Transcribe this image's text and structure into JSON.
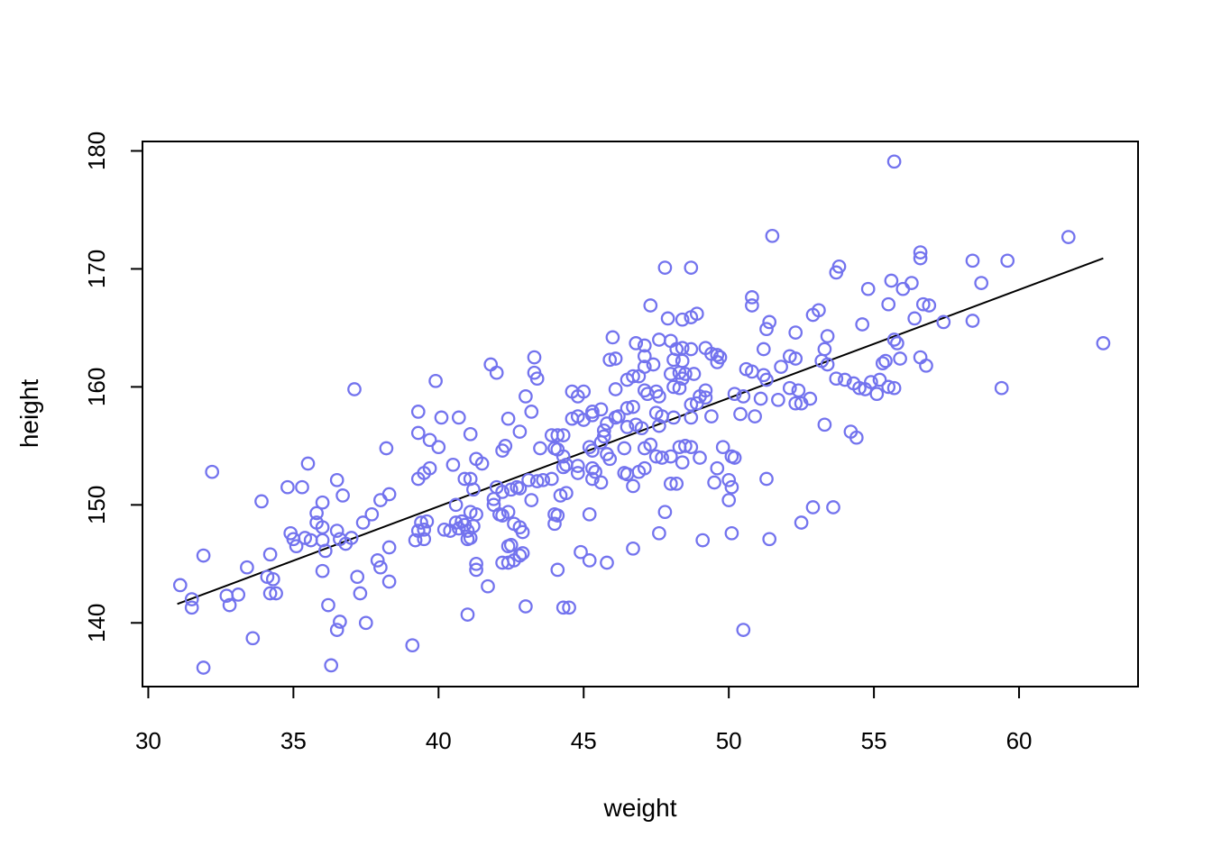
{
  "chart_data": {
    "type": "scatter",
    "title": "",
    "xlabel": "weight",
    "ylabel": "height",
    "xlim": [
      29.8,
      64.1
    ],
    "ylim": [
      134.6,
      180.8
    ],
    "x_ticks": [
      30,
      35,
      40,
      45,
      50,
      55,
      60
    ],
    "y_ticks": [
      140,
      150,
      160,
      170,
      180
    ],
    "grid": false,
    "legend": null,
    "point_color": "#7373ee",
    "line_color": "#000000",
    "frame_color": "#000000",
    "regression_line": {
      "x1": 31.0,
      "y1": 141.6,
      "x2": 62.9,
      "y2": 170.9
    },
    "points": [
      [
        37.1,
        159.8
      ],
      [
        32.2,
        152.8
      ],
      [
        35.5,
        153.5
      ],
      [
        34.8,
        151.5
      ],
      [
        35.3,
        151.5
      ],
      [
        36.5,
        152.1
      ],
      [
        36.7,
        150.8
      ],
      [
        36.0,
        150.2
      ],
      [
        33.9,
        150.3
      ],
      [
        38.2,
        154.8
      ],
      [
        38.3,
        150.9
      ],
      [
        31.1,
        143.2
      ],
      [
        31.5,
        142.0
      ],
      [
        31.5,
        141.3
      ],
      [
        31.9,
        145.7
      ],
      [
        31.9,
        136.2
      ],
      [
        32.7,
        142.3
      ],
      [
        32.8,
        141.5
      ],
      [
        33.1,
        142.4
      ],
      [
        33.4,
        144.7
      ],
      [
        33.6,
        138.7
      ],
      [
        34.2,
        145.8
      ],
      [
        34.1,
        143.9
      ],
      [
        34.3,
        143.7
      ],
      [
        34.2,
        142.5
      ],
      [
        34.4,
        142.5
      ],
      [
        34.9,
        147.6
      ],
      [
        35.0,
        147.1
      ],
      [
        35.1,
        146.5
      ],
      [
        35.4,
        147.2
      ],
      [
        35.6,
        147.0
      ],
      [
        35.8,
        149.3
      ],
      [
        35.8,
        148.5
      ],
      [
        36.0,
        148.1
      ],
      [
        36.0,
        147.0
      ],
      [
        36.1,
        146.1
      ],
      [
        36.0,
        144.4
      ],
      [
        36.2,
        141.5
      ],
      [
        36.3,
        136.4
      ],
      [
        36.5,
        147.8
      ],
      [
        36.6,
        147.1
      ],
      [
        36.6,
        140.1
      ],
      [
        36.5,
        139.4
      ],
      [
        36.8,
        146.7
      ],
      [
        37.0,
        147.2
      ],
      [
        37.4,
        148.5
      ],
      [
        37.7,
        149.2
      ],
      [
        38.0,
        150.4
      ],
      [
        37.2,
        143.9
      ],
      [
        37.3,
        142.5
      ],
      [
        37.5,
        140.0
      ],
      [
        37.9,
        145.3
      ],
      [
        38.0,
        144.7
      ],
      [
        38.3,
        143.5
      ],
      [
        38.3,
        146.4
      ],
      [
        46.0,
        164.2
      ],
      [
        46.8,
        163.7
      ],
      [
        47.1,
        163.5
      ],
      [
        45.9,
        162.3
      ],
      [
        46.1,
        162.4
      ],
      [
        43.3,
        162.5
      ],
      [
        43.3,
        161.2
      ],
      [
        43.4,
        160.7
      ],
      [
        41.8,
        161.9
      ],
      [
        42.0,
        161.2
      ],
      [
        39.9,
        160.5
      ],
      [
        46.9,
        160.9
      ],
      [
        46.5,
        160.6
      ],
      [
        46.7,
        160.9
      ],
      [
        46.1,
        159.8
      ],
      [
        44.6,
        159.6
      ],
      [
        45.0,
        159.6
      ],
      [
        44.8,
        159.2
      ],
      [
        43.0,
        159.2
      ],
      [
        43.2,
        157.9
      ],
      [
        39.3,
        157.9
      ],
      [
        40.1,
        157.4
      ],
      [
        40.7,
        157.4
      ],
      [
        39.3,
        156.1
      ],
      [
        39.7,
        155.5
      ],
      [
        40.0,
        154.9
      ],
      [
        41.1,
        156.0
      ],
      [
        42.4,
        157.3
      ],
      [
        42.8,
        156.2
      ],
      [
        42.3,
        155.0
      ],
      [
        42.2,
        154.6
      ],
      [
        43.9,
        155.9
      ],
      [
        44.1,
        155.9
      ],
      [
        44.3,
        155.9
      ],
      [
        44.6,
        157.3
      ],
      [
        44.8,
        157.5
      ],
      [
        45.0,
        157.2
      ],
      [
        45.3,
        157.6
      ],
      [
        45.3,
        157.9
      ],
      [
        45.6,
        158.1
      ],
      [
        45.8,
        156.9
      ],
      [
        45.7,
        156.3
      ],
      [
        45.7,
        155.8
      ],
      [
        45.6,
        155.3
      ],
      [
        46.1,
        157.4
      ],
      [
        46.2,
        157.5
      ],
      [
        46.5,
        158.2
      ],
      [
        46.7,
        158.3
      ],
      [
        46.5,
        156.6
      ],
      [
        46.8,
        156.8
      ],
      [
        47.0,
        156.5
      ],
      [
        46.4,
        154.8
      ],
      [
        45.8,
        154.3
      ],
      [
        45.9,
        153.9
      ],
      [
        45.2,
        154.9
      ],
      [
        45.3,
        154.6
      ],
      [
        43.5,
        154.8
      ],
      [
        44.0,
        154.8
      ],
      [
        44.1,
        154.7
      ],
      [
        44.3,
        154.1
      ],
      [
        41.3,
        153.9
      ],
      [
        41.5,
        153.5
      ],
      [
        40.5,
        153.4
      ],
      [
        39.7,
        153.1
      ],
      [
        39.5,
        152.7
      ],
      [
        39.3,
        152.2
      ],
      [
        40.9,
        152.2
      ],
      [
        41.1,
        152.2
      ],
      [
        41.2,
        151.3
      ],
      [
        42.0,
        151.5
      ],
      [
        42.2,
        151.1
      ],
      [
        41.9,
        150.5
      ],
      [
        42.5,
        151.3
      ],
      [
        42.7,
        151.5
      ],
      [
        42.8,
        151.4
      ],
      [
        43.1,
        152.1
      ],
      [
        43.4,
        152.0
      ],
      [
        43.6,
        152.1
      ],
      [
        43.9,
        152.2
      ],
      [
        44.3,
        153.2
      ],
      [
        44.4,
        153.4
      ],
      [
        44.8,
        153.3
      ],
      [
        44.8,
        152.7
      ],
      [
        45.3,
        153.1
      ],
      [
        45.4,
        152.8
      ],
      [
        45.6,
        151.9
      ],
      [
        45.3,
        152.2
      ],
      [
        46.4,
        152.7
      ],
      [
        46.5,
        152.6
      ],
      [
        46.9,
        152.8
      ],
      [
        47.1,
        153.1
      ],
      [
        46.7,
        151.6
      ],
      [
        41.9,
        150.0
      ],
      [
        43.2,
        150.4
      ],
      [
        44.2,
        150.8
      ],
      [
        44.4,
        151.0
      ],
      [
        40.6,
        150.0
      ],
      [
        39.4,
        148.5
      ],
      [
        39.6,
        148.6
      ],
      [
        39.3,
        147.8
      ],
      [
        39.5,
        147.9
      ],
      [
        39.2,
        147.0
      ],
      [
        39.5,
        147.1
      ],
      [
        40.2,
        147.9
      ],
      [
        40.4,
        147.8
      ],
      [
        40.6,
        148.5
      ],
      [
        40.8,
        148.6
      ],
      [
        40.7,
        148.0
      ],
      [
        41.1,
        149.4
      ],
      [
        41.3,
        149.2
      ],
      [
        40.9,
        148.3
      ],
      [
        41.0,
        147.8
      ],
      [
        41.0,
        147.1
      ],
      [
        41.1,
        147.2
      ],
      [
        41.2,
        148.2
      ],
      [
        42.1,
        149.2
      ],
      [
        42.2,
        149.1
      ],
      [
        42.4,
        149.4
      ],
      [
        42.6,
        148.4
      ],
      [
        42.8,
        148.1
      ],
      [
        42.9,
        147.7
      ],
      [
        42.4,
        146.5
      ],
      [
        42.5,
        146.6
      ],
      [
        42.2,
        145.1
      ],
      [
        42.4,
        145.1
      ],
      [
        42.6,
        145.3
      ],
      [
        42.8,
        145.7
      ],
      [
        42.9,
        145.9
      ],
      [
        41.3,
        145.0
      ],
      [
        41.3,
        144.5
      ],
      [
        41.7,
        143.1
      ],
      [
        41.0,
        140.7
      ],
      [
        43.0,
        141.4
      ],
      [
        44.3,
        141.3
      ],
      [
        44.5,
        141.3
      ],
      [
        44.1,
        144.5
      ],
      [
        44.9,
        146.0
      ],
      [
        45.2,
        145.3
      ],
      [
        45.8,
        145.1
      ],
      [
        46.7,
        146.3
      ],
      [
        45.2,
        149.2
      ],
      [
        44.0,
        149.2
      ],
      [
        44.1,
        149.1
      ],
      [
        44.0,
        148.4
      ],
      [
        39.1,
        138.1
      ],
      [
        51.5,
        172.8
      ],
      [
        47.8,
        170.1
      ],
      [
        48.7,
        170.1
      ],
      [
        53.8,
        170.2
      ],
      [
        53.7,
        169.7
      ],
      [
        54.8,
        168.3
      ],
      [
        55.5,
        167.0
      ],
      [
        50.8,
        167.6
      ],
      [
        50.8,
        166.9
      ],
      [
        47.3,
        166.9
      ],
      [
        53.1,
        166.5
      ],
      [
        52.9,
        166.1
      ],
      [
        47.9,
        165.8
      ],
      [
        48.4,
        165.7
      ],
      [
        48.7,
        165.9
      ],
      [
        48.9,
        166.2
      ],
      [
        51.4,
        165.5
      ],
      [
        51.3,
        164.9
      ],
      [
        52.3,
        164.6
      ],
      [
        53.4,
        164.3
      ],
      [
        54.6,
        165.3
      ],
      [
        47.6,
        164.0
      ],
      [
        48.0,
        163.9
      ],
      [
        47.1,
        162.6
      ],
      [
        47.4,
        161.9
      ],
      [
        48.2,
        163.2
      ],
      [
        48.4,
        163.3
      ],
      [
        48.7,
        163.2
      ],
      [
        49.2,
        163.3
      ],
      [
        49.4,
        162.8
      ],
      [
        49.6,
        162.7
      ],
      [
        49.7,
        162.5
      ],
      [
        49.6,
        162.1
      ],
      [
        48.1,
        162.3
      ],
      [
        48.4,
        162.2
      ],
      [
        48.0,
        161.1
      ],
      [
        48.3,
        161.2
      ],
      [
        48.5,
        161.1
      ],
      [
        48.8,
        161.1
      ],
      [
        48.4,
        160.7
      ],
      [
        47.1,
        161.7
      ],
      [
        47.1,
        159.7
      ],
      [
        47.2,
        159.4
      ],
      [
        47.5,
        159.6
      ],
      [
        47.6,
        159.2
      ],
      [
        48.1,
        160.0
      ],
      [
        48.3,
        159.9
      ],
      [
        49.2,
        159.7
      ],
      [
        49.0,
        159.2
      ],
      [
        49.2,
        159.1
      ],
      [
        48.7,
        158.5
      ],
      [
        48.9,
        158.6
      ],
      [
        47.5,
        157.8
      ],
      [
        47.7,
        157.5
      ],
      [
        48.1,
        157.4
      ],
      [
        48.7,
        157.4
      ],
      [
        49.4,
        157.5
      ],
      [
        47.6,
        156.7
      ],
      [
        50.2,
        159.4
      ],
      [
        50.5,
        159.2
      ],
      [
        50.4,
        157.7
      ],
      [
        50.9,
        157.5
      ],
      [
        50.6,
        161.5
      ],
      [
        50.8,
        161.3
      ],
      [
        51.2,
        161.0
      ],
      [
        51.3,
        160.6
      ],
      [
        51.2,
        163.2
      ],
      [
        51.8,
        161.7
      ],
      [
        51.1,
        159.0
      ],
      [
        51.7,
        158.9
      ],
      [
        52.1,
        162.6
      ],
      [
        52.3,
        162.4
      ],
      [
        52.1,
        159.9
      ],
      [
        52.4,
        159.7
      ],
      [
        52.3,
        158.6
      ],
      [
        52.5,
        158.6
      ],
      [
        52.8,
        159.0
      ],
      [
        53.2,
        162.2
      ],
      [
        53.4,
        161.9
      ],
      [
        53.3,
        163.2
      ],
      [
        53.3,
        156.8
      ],
      [
        54.2,
        156.2
      ],
      [
        54.4,
        155.7
      ],
      [
        53.7,
        160.7
      ],
      [
        54.0,
        160.6
      ],
      [
        54.3,
        160.3
      ],
      [
        54.5,
        159.9
      ],
      [
        54.7,
        159.8
      ],
      [
        54.9,
        160.4
      ],
      [
        55.2,
        160.6
      ],
      [
        55.3,
        162.0
      ],
      [
        55.4,
        162.2
      ],
      [
        55.7,
        164.0
      ],
      [
        55.1,
        159.4
      ],
      [
        47.3,
        155.1
      ],
      [
        47.1,
        154.8
      ],
      [
        48.3,
        154.9
      ],
      [
        48.5,
        155.0
      ],
      [
        48.7,
        154.9
      ],
      [
        47.5,
        154.1
      ],
      [
        47.7,
        154.0
      ],
      [
        48.0,
        154.1
      ],
      [
        48.4,
        153.6
      ],
      [
        49.0,
        154.0
      ],
      [
        49.8,
        154.9
      ],
      [
        50.1,
        154.1
      ],
      [
        50.2,
        154.0
      ],
      [
        48.0,
        151.8
      ],
      [
        48.2,
        151.8
      ],
      [
        49.6,
        153.1
      ],
      [
        49.5,
        151.9
      ],
      [
        50.0,
        152.1
      ],
      [
        50.1,
        151.5
      ],
      [
        51.3,
        152.2
      ],
      [
        50.0,
        150.4
      ],
      [
        52.9,
        149.8
      ],
      [
        53.6,
        149.8
      ],
      [
        47.8,
        149.4
      ],
      [
        52.5,
        148.5
      ],
      [
        47.6,
        147.6
      ],
      [
        49.1,
        147.0
      ],
      [
        50.1,
        147.6
      ],
      [
        51.4,
        147.1
      ],
      [
        50.5,
        139.4
      ],
      [
        55.7,
        179.1
      ],
      [
        61.7,
        172.7
      ],
      [
        56.6,
        171.4
      ],
      [
        56.6,
        170.9
      ],
      [
        58.4,
        170.7
      ],
      [
        59.6,
        170.7
      ],
      [
        55.6,
        169.0
      ],
      [
        56.0,
        168.3
      ],
      [
        56.3,
        168.8
      ],
      [
        58.7,
        168.8
      ],
      [
        56.7,
        167.0
      ],
      [
        56.9,
        166.9
      ],
      [
        56.4,
        165.8
      ],
      [
        55.8,
        163.7
      ],
      [
        55.9,
        162.4
      ],
      [
        56.6,
        162.5
      ],
      [
        56.8,
        161.8
      ],
      [
        57.4,
        165.5
      ],
      [
        58.4,
        165.6
      ],
      [
        62.9,
        163.7
      ],
      [
        55.5,
        160.0
      ],
      [
        55.7,
        159.9
      ],
      [
        59.4,
        159.9
      ]
    ]
  }
}
